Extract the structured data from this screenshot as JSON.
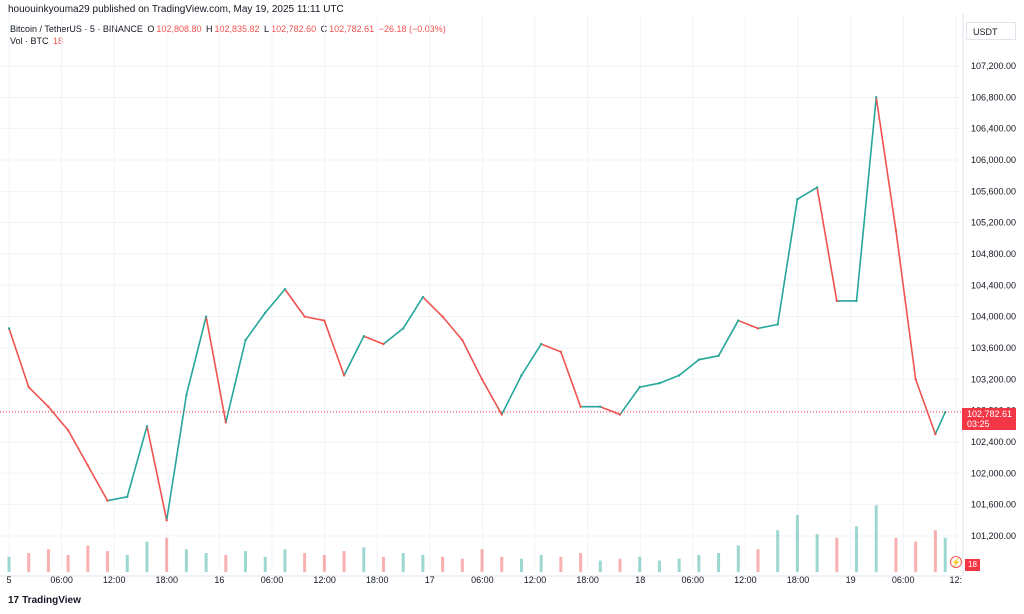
{
  "header": {
    "published_line": "hououinkyouma29 published on TradingView.com, May 19, 2025 11:11 UTC"
  },
  "legend": {
    "symbol": "Bitcoin / TetherUS · 5 · BINANCE",
    "o_label": "O",
    "o_value": "102,808.80",
    "h_label": "H",
    "h_value": "102,835.82",
    "l_label": "L",
    "l_value": "102,782.60",
    "c_label": "C",
    "c_value": "102,782.61",
    "change": "−26.18 (−0.03%)",
    "vol_label": "Vol · BTC",
    "vol_value": "18"
  },
  "price_axis": {
    "currency": "USDT",
    "current_price": "102,782.61",
    "countdown": "03:25",
    "volume_badge": "18"
  },
  "footer": {
    "brand": "TradingView",
    "logo_icon": "tradingview-logo-icon"
  },
  "colors": {
    "up": "#26a69a",
    "down": "#ef5350",
    "grid": "#f0f3fa",
    "price_line": "#f23645",
    "axis_text": "#131722"
  },
  "chart_data": {
    "type": "line",
    "symbol": "BTCUSDT",
    "interval": "5",
    "ylim": [
      101200,
      107300
    ],
    "x_ticks": [
      "5",
      "06:00",
      "12:00",
      "18:00",
      "16",
      "06:00",
      "12:00",
      "18:00",
      "17",
      "06:00",
      "12:00",
      "18:00",
      "18",
      "06:00",
      "12:00",
      "18:00",
      "19",
      "06:00",
      "12:"
    ],
    "y_ticks": [
      "107,200.00",
      "106,800.00",
      "106,400.00",
      "106,000.00",
      "105,600.00",
      "105,200.00",
      "104,800.00",
      "104,400.00",
      "104,000.00",
      "103,600.00",
      "103,200.00",
      "102,800.00",
      "102,400.00",
      "102,000.00",
      "101,600.00",
      "101,200.00"
    ],
    "y_tick_values": [
      107200,
      106800,
      106400,
      106000,
      105600,
      105200,
      104800,
      104400,
      104000,
      103600,
      103200,
      102800,
      102400,
      102000,
      101600,
      101200
    ],
    "current_price": 102782.61,
    "x_hours": [
      0,
      2,
      4,
      6,
      8,
      10,
      12,
      14,
      16,
      18,
      20,
      22,
      24,
      26,
      28,
      30,
      32,
      34,
      36,
      38,
      40,
      42,
      44,
      46,
      48,
      50,
      52,
      54,
      56,
      58,
      60,
      62,
      64,
      66,
      68,
      70,
      72,
      74,
      76,
      78,
      80,
      82,
      84,
      86,
      88,
      90,
      92,
      94,
      95
    ],
    "close": [
      103850,
      103100,
      102850,
      102550,
      102100,
      101650,
      101700,
      102600,
      101400,
      103000,
      104000,
      102650,
      103700,
      104050,
      104350,
      104000,
      103950,
      103250,
      103750,
      103650,
      103850,
      104250,
      104000,
      103700,
      103200,
      102750,
      103250,
      103650,
      103550,
      102850,
      102850,
      102750,
      103100,
      103150,
      103250,
      103450,
      103500,
      103950,
      103850,
      103900,
      105500,
      105650,
      104200,
      104200,
      106800,
      105100,
      103200,
      102500,
      102780
    ],
    "volume": [
      8,
      10,
      12,
      9,
      14,
      11,
      9,
      16,
      18,
      12,
      10,
      9,
      11,
      8,
      12,
      10,
      9,
      11,
      13,
      8,
      10,
      9,
      8,
      7,
      12,
      8,
      7,
      9,
      8,
      10,
      6,
      7,
      8,
      6,
      7,
      9,
      10,
      14,
      12,
      22,
      30,
      20,
      18,
      24,
      35,
      18,
      16,
      22,
      18
    ]
  }
}
